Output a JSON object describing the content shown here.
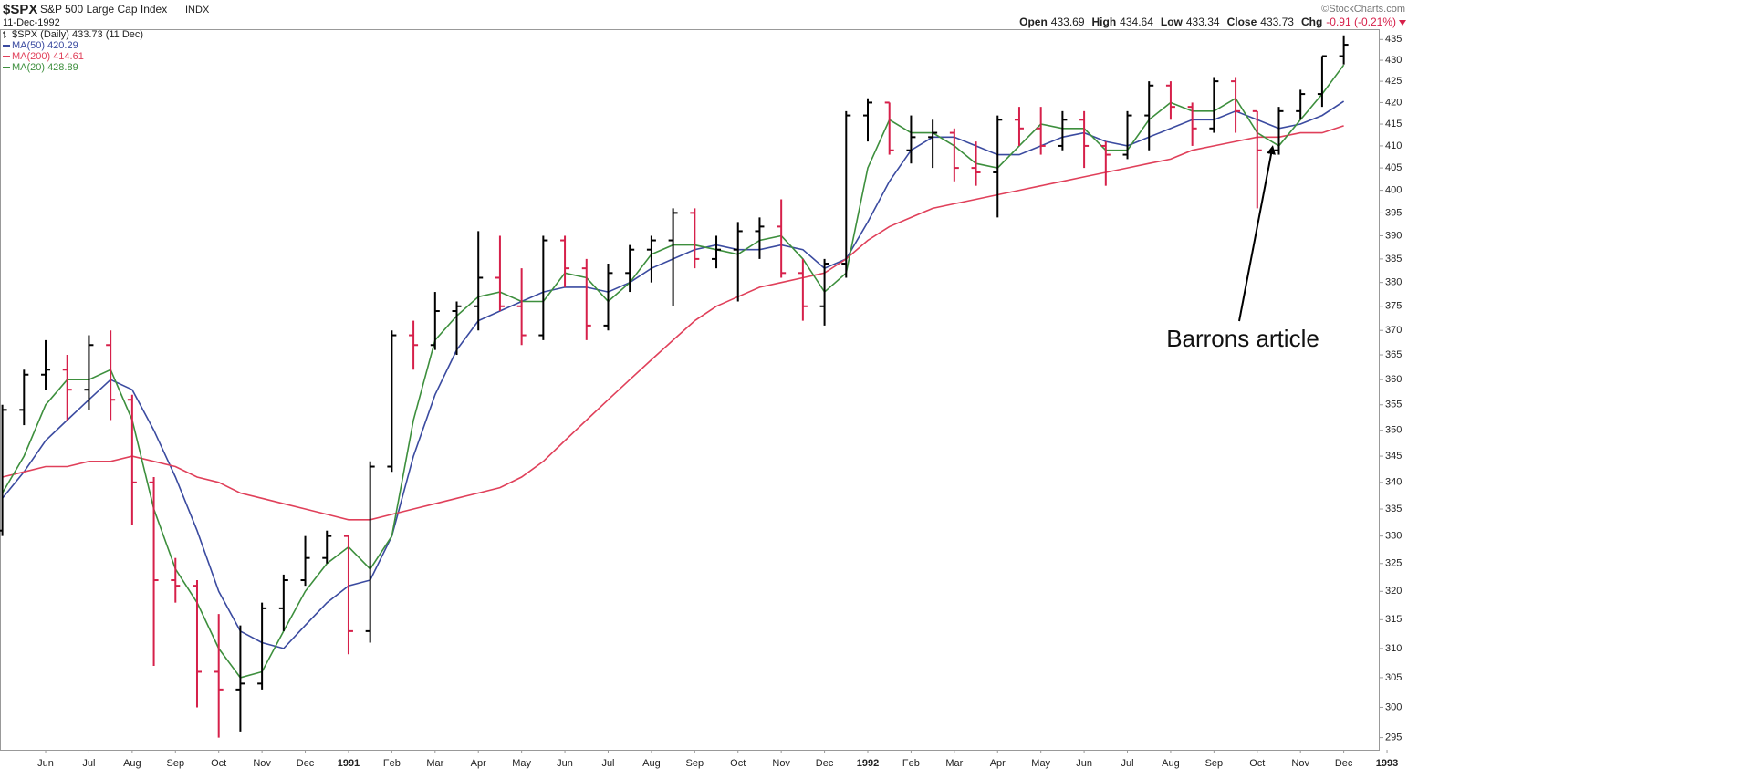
{
  "chart_data": {
    "type": "ohlc",
    "title": "$SPX",
    "subtitle": "S&P 500 Large Cap Index",
    "exchange": "INDX",
    "date": "11-Dec-1992",
    "credit": "©StockCharts.com",
    "quote": [
      {
        "label": "Open",
        "value": 433.69
      },
      {
        "label": "High",
        "value": 434.64
      },
      {
        "label": "Low",
        "value": 433.34
      },
      {
        "label": "Close",
        "value": 433.73
      },
      {
        "label": "Chg",
        "text": "-0.91 (-0.21%)"
      }
    ],
    "log_scale": true,
    "grid": false,
    "legend": "top-left",
    "ylim": [
      293,
      437.5
    ],
    "yticks": [
      295,
      300,
      305,
      310,
      315,
      320,
      325,
      330,
      335,
      340,
      345,
      350,
      355,
      360,
      365,
      370,
      375,
      380,
      385,
      390,
      395,
      400,
      405,
      410,
      415,
      420,
      425,
      430,
      435
    ],
    "categories": [
      null,
      null,
      "Jun",
      null,
      "Jul",
      null,
      "Aug",
      null,
      "Sep",
      null,
      "Oct",
      null,
      "Nov",
      null,
      "Dec",
      null,
      "1991",
      null,
      "Feb",
      null,
      "Mar",
      null,
      "Apr",
      null,
      "May",
      null,
      "Jun",
      null,
      "Jul",
      null,
      "Aug",
      null,
      "Sep",
      null,
      "Oct",
      null,
      "Nov",
      null,
      "Dec",
      null,
      "1992",
      null,
      "Feb",
      null,
      "Mar",
      null,
      "Apr",
      null,
      "May",
      null,
      "Jun",
      null,
      "Jul",
      null,
      "Aug",
      null,
      "Sep",
      null,
      "Oct",
      null,
      "Nov",
      null,
      "Dec",
      null,
      "1993"
    ],
    "ohlc": {
      "name": "$SPX (Daily) 433.73 (11 Dec)",
      "up_color": "#000000",
      "down_color": "#d6204a",
      "open": [
        331,
        354,
        361,
        362,
        358,
        367,
        356,
        340,
        322,
        321,
        306,
        303,
        304,
        317,
        322,
        326,
        330,
        313,
        343,
        369,
        367,
        374,
        375,
        381,
        375,
        369,
        389,
        383,
        371,
        382,
        387,
        389,
        395,
        385,
        387,
        391,
        392,
        382,
        375,
        384,
        417,
        420,
        409,
        412,
        413,
        405,
        404,
        416,
        414,
        410,
        416,
        410,
        408,
        417,
        424,
        419,
        414,
        425,
        418,
        409,
        418,
        422,
        431,
        null,
        null
      ],
      "high": [
        355,
        362,
        368,
        365,
        369,
        370,
        357,
        341,
        326,
        322,
        316,
        314,
        318,
        323,
        330,
        331,
        330,
        344,
        370,
        372,
        378,
        376,
        391,
        390,
        383,
        390,
        390,
        385,
        384,
        388,
        390,
        396,
        396,
        390,
        393,
        394,
        398,
        385,
        385,
        418,
        421,
        420,
        417,
        416,
        414,
        411,
        417,
        419,
        419,
        418,
        418,
        411,
        418,
        425,
        425,
        420,
        426,
        426,
        418,
        419,
        423,
        431,
        436,
        null,
        null
      ],
      "low": [
        330,
        351,
        358,
        352,
        354,
        352,
        332,
        307,
        318,
        300,
        295,
        296,
        303,
        313,
        321,
        325,
        309,
        311,
        342,
        362,
        366,
        365,
        370,
        374,
        367,
        368,
        379,
        368,
        370,
        378,
        380,
        375,
        383,
        383,
        376,
        385,
        381,
        372,
        371,
        381,
        411,
        408,
        406,
        405,
        402,
        401,
        394,
        410,
        408,
        409,
        405,
        401,
        407,
        409,
        416,
        410,
        413,
        413,
        396,
        408,
        416,
        419,
        429,
        null,
        null
      ],
      "close": [
        354,
        361,
        362,
        358,
        367,
        356,
        340,
        322,
        321,
        306,
        303,
        304,
        317,
        322,
        326,
        330,
        313,
        343,
        369,
        367,
        374,
        375,
        381,
        375,
        369,
        389,
        383,
        371,
        382,
        387,
        389,
        395,
        385,
        387,
        391,
        392,
        382,
        375,
        384,
        417,
        420,
        409,
        412,
        413,
        405,
        404,
        416,
        414,
        410,
        416,
        410,
        408,
        417,
        424,
        419,
        414,
        425,
        418,
        409,
        418,
        422,
        431,
        433.73,
        null,
        null
      ]
    },
    "series": [
      {
        "name": "MA(50)",
        "color": "#3b4ba0",
        "values": [
          337,
          342,
          348,
          352,
          356,
          360,
          358,
          350,
          341,
          331,
          320,
          313,
          311,
          310,
          314,
          318,
          321,
          322,
          330,
          345,
          357,
          366,
          372,
          374,
          376,
          378,
          379,
          379,
          378,
          380,
          383,
          385,
          387,
          388,
          387,
          387,
          388,
          387,
          383,
          385,
          393,
          402,
          409,
          412,
          412,
          410,
          408,
          408,
          410,
          412,
          413,
          411,
          410,
          412,
          414,
          416,
          416,
          418,
          416,
          414,
          415,
          417,
          420.29,
          null,
          null
        ]
      },
      {
        "name": "MA(200)",
        "color": "#e0405a",
        "values": [
          341,
          342,
          343,
          343,
          344,
          344,
          345,
          344,
          343,
          341,
          340,
          338,
          337,
          336,
          335,
          334,
          333,
          333,
          334,
          335,
          336,
          337,
          338,
          339,
          341,
          344,
          348,
          352,
          356,
          360,
          364,
          368,
          372,
          375,
          377,
          379,
          380,
          381,
          382,
          385,
          389,
          392,
          394,
          396,
          397,
          398,
          399,
          400,
          401,
          402,
          403,
          404,
          405,
          406,
          407,
          409,
          410,
          411,
          412,
          412,
          413,
          413,
          414.61,
          null,
          null
        ]
      },
      {
        "name": "MA(20)",
        "color": "#3d8f3d",
        "values": [
          338,
          345,
          355,
          360,
          360,
          362,
          352,
          335,
          324,
          318,
          310,
          305,
          306,
          313,
          320,
          325,
          328,
          324,
          330,
          352,
          368,
          373,
          377,
          378,
          376,
          376,
          382,
          381,
          376,
          380,
          386,
          388,
          388,
          387,
          386,
          389,
          390,
          385,
          378,
          382,
          405,
          416,
          413,
          413,
          410,
          406,
          405,
          410,
          415,
          414,
          414,
          409,
          409,
          416,
          420,
          418,
          418,
          421,
          413,
          410,
          416,
          422,
          428.89,
          null,
          null
        ]
      }
    ],
    "annotation": {
      "text": "Barrons article"
    }
  }
}
